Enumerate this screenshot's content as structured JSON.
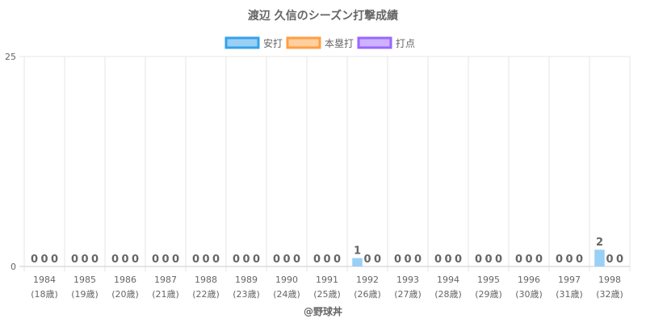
{
  "chart_data": {
    "type": "bar",
    "title": "渡辺 久信のシーズン打撃成績",
    "categories": [
      "1984",
      "1985",
      "1986",
      "1987",
      "1988",
      "1989",
      "1990",
      "1991",
      "1992",
      "1993",
      "1994",
      "1995",
      "1996",
      "1997",
      "1998"
    ],
    "category_sublabels": [
      "(18歳)",
      "(19歳)",
      "(20歳)",
      "(21歳)",
      "(22歳)",
      "(23歳)",
      "(24歳)",
      "(25歳)",
      "(26歳)",
      "(27歳)",
      "(28歳)",
      "(29歳)",
      "(30歳)",
      "(31歳)",
      "(32歳)"
    ],
    "series": [
      {
        "name": "安打",
        "values": [
          0,
          0,
          0,
          0,
          0,
          0,
          0,
          0,
          1,
          0,
          0,
          0,
          0,
          0,
          2
        ],
        "fill": "#9ad0f5",
        "stroke": "#36a2eb"
      },
      {
        "name": "本塁打",
        "values": [
          0,
          0,
          0,
          0,
          0,
          0,
          0,
          0,
          0,
          0,
          0,
          0,
          0,
          0,
          0
        ],
        "fill": "#ffcf9f",
        "stroke": "#ff9f40"
      },
      {
        "name": "打点",
        "values": [
          0,
          0,
          0,
          0,
          0,
          0,
          0,
          0,
          0,
          0,
          0,
          0,
          0,
          0,
          0
        ],
        "fill": "#ccb2ff",
        "stroke": "#9966ff"
      }
    ],
    "ylim": [
      0,
      25
    ],
    "yticks": [
      "0",
      "25"
    ],
    "grid": true,
    "legend": "top-center",
    "credit": "@野球丼"
  }
}
